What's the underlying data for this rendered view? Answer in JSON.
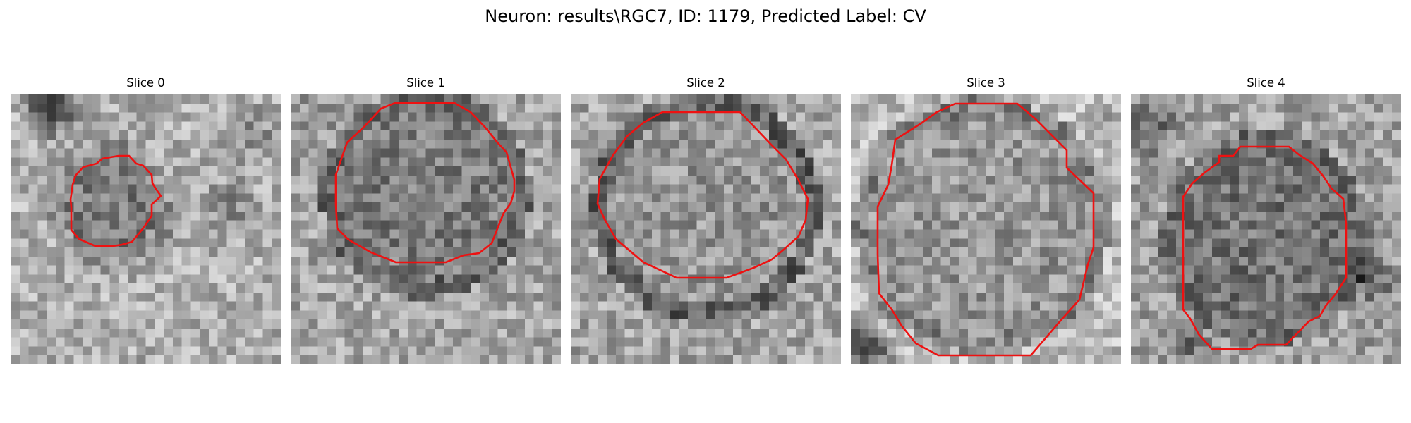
{
  "figure": {
    "title": "Neuron: results\\RGC7, ID: 1179, Predicted Label: CV"
  },
  "panels": [
    {
      "title": "Slice 0"
    },
    {
      "title": "Slice 1"
    },
    {
      "title": "Slice 2"
    },
    {
      "title": "Slice 3"
    },
    {
      "title": "Slice 4"
    }
  ],
  "contour_color": "#ee1111"
}
